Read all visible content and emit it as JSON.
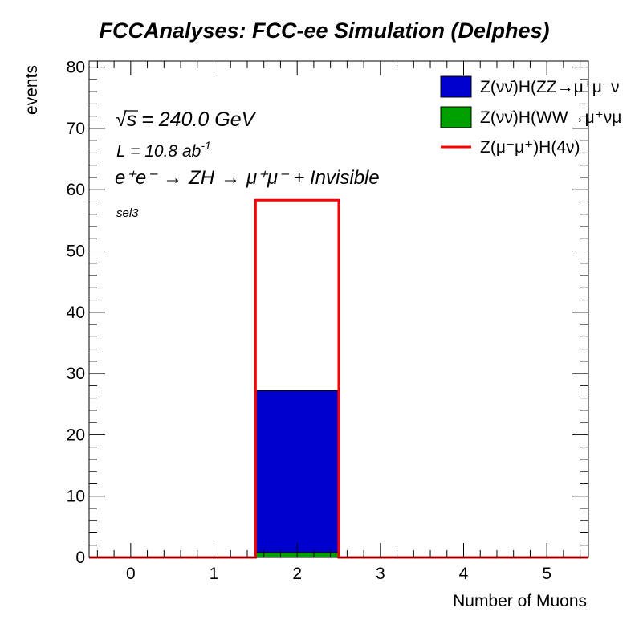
{
  "chart_data": {
    "type": "bar",
    "title": "FCCAnalyses: FCC-ee Simulation (Delphes)",
    "xlabel": "Number of Muons",
    "ylabel": "events",
    "xlim": [
      -0.5,
      5.5
    ],
    "ylim": [
      0,
      81
    ],
    "x_ticks": [
      "0",
      "1",
      "2",
      "3",
      "4",
      "5"
    ],
    "y_ticks": [
      "0",
      "10",
      "20",
      "30",
      "40",
      "50",
      "60",
      "70",
      "80"
    ],
    "bins": [
      0,
      1,
      2,
      3,
      4,
      5
    ],
    "stacked": true,
    "series": [
      {
        "name": "Z(νν̄)H(WW→μ⁺νμ⁻ν̄)",
        "label_visible": "Z(νν̄)H(WW→μ⁺νμ",
        "style": "fill",
        "color": "#00a000",
        "values": [
          0,
          0,
          0.8,
          0,
          0,
          0
        ]
      },
      {
        "name": "Z(νν̄)H(ZZ→μ⁺μ⁻νν̄)",
        "label_visible": "Z(νν̄)H(ZZ→μ⁺μ⁻ν",
        "style": "fill",
        "color": "#0000cc",
        "values": [
          0,
          0,
          26.4,
          0,
          0,
          0
        ]
      },
      {
        "name": "Z(μ⁻μ⁺)H(4ν)",
        "label_visible": "Z(μ⁻μ⁺)H(4ν)",
        "style": "line",
        "color": "#ff0000",
        "values": [
          0,
          0,
          58.3,
          0,
          0,
          0
        ]
      }
    ],
    "legend": {
      "placement": "top-right",
      "order": [
        1,
        0,
        2
      ]
    },
    "annotations": {
      "sqrt_s": "= 240.0 GeV",
      "lumi": "L = 10.8 ab",
      "lumi_exp": "-1",
      "process_lhs": "e⁺e⁻",
      "process_arrow": "→",
      "process_mid": "ZH",
      "process_rhs": "μ⁺μ⁻ + Invisible",
      "selection": "sel3"
    },
    "grid": false
  }
}
